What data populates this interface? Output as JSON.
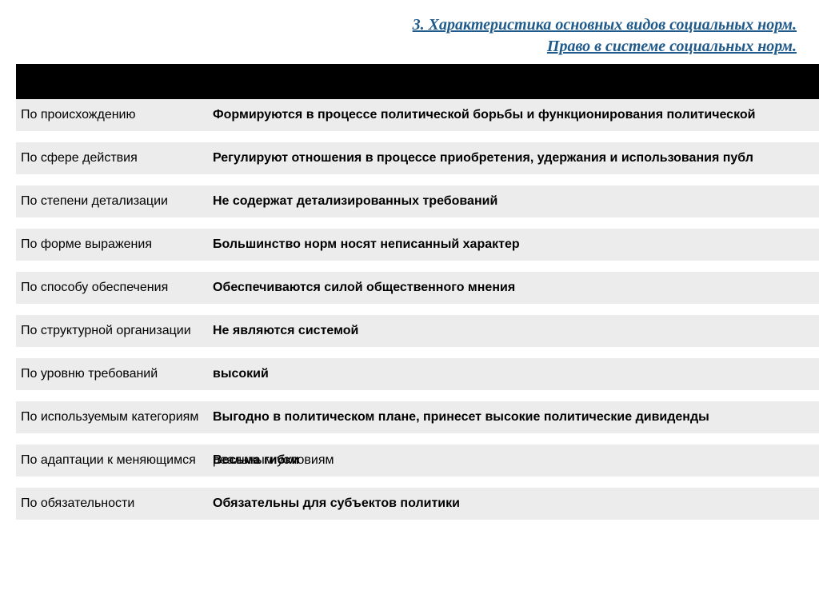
{
  "title": {
    "line1": "3. Характеристика основных видов социальных норм.",
    "line2": "Право в системе социальных норм."
  },
  "table": {
    "rows": [
      {
        "criterion": "По происхождению",
        "value": "Формируются в процессе политической борьбы и функционирования политической",
        "tall": false
      },
      {
        "criterion": "По сфере действия",
        "value": "Регулируют отношения в процессе приобретения, удержания и использования публ",
        "tall": false
      },
      {
        "criterion": "По степени детализации",
        "value": "Не содержат детализированных требований",
        "tall": false
      },
      {
        "criterion": "По форме выражения",
        "value": "Большинство норм носят неписанный характер",
        "tall": false
      },
      {
        "criterion": "По способу обеспечения",
        "value": "Обеспечиваются силой общественного мнения",
        "tall": false
      },
      {
        "criterion": "По структурной организации",
        "value": "Не являются системой",
        "tall": true
      },
      {
        "criterion": "По уровню требований",
        "value": "высокий",
        "tall": false
      },
      {
        "criterion": "По используемым категориям",
        "value": "Выгодно в политическом плане, принесет высокие политические дивиденды",
        "tall": true
      },
      {
        "criterion": "По адаптации к меняющимся",
        "overlap1": "Весьма гибки",
        "overlap2": "реальным условиям",
        "tall": true
      },
      {
        "criterion": "По обязательности",
        "value": "Обязательны для субъектов политики",
        "tall": false
      }
    ]
  },
  "colors": {
    "title_color": "#1f5a8a",
    "row_bg": "#ececec",
    "header_bg": "#000000",
    "page_bg": "#ffffff"
  },
  "fonts": {
    "title_family": "Times New Roman, serif",
    "title_size_pt": 15,
    "body_family": "Arial, sans-serif",
    "body_size_pt": 12
  }
}
